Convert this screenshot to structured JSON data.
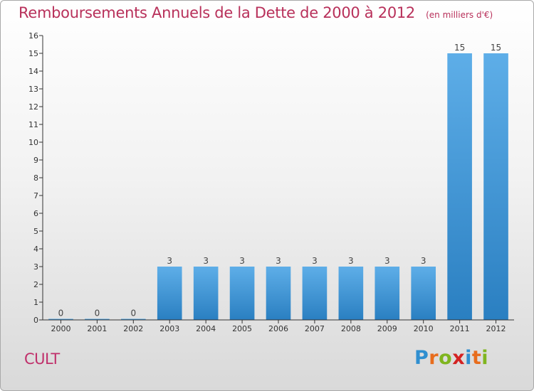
{
  "header": {
    "title": "Remboursements Annuels de la Dette de 2000 à 2012",
    "subtitle": "(en milliers d'€)"
  },
  "commune_name": "CULT",
  "brand": {
    "letters": [
      "P",
      "r",
      "o",
      "x",
      "i",
      "t",
      "i"
    ],
    "colors": [
      "#2f8fd0",
      "#e86d1d",
      "#7fb51f",
      "#d32222",
      "#2f8fd0",
      "#e86d1d",
      "#7fb51f"
    ]
  },
  "chart_data": {
    "type": "bar",
    "title": "Remboursements Annuels de la Dette de 2000 à 2012",
    "subtitle": "(en milliers d'€)",
    "categories": [
      "2000",
      "2001",
      "2002",
      "2003",
      "2004",
      "2005",
      "2006",
      "2007",
      "2008",
      "2009",
      "2010",
      "2011",
      "2012"
    ],
    "values": [
      0,
      0,
      0,
      3,
      3,
      3,
      3,
      3,
      3,
      3,
      3,
      15,
      15
    ],
    "data_labels": [
      "0",
      "0",
      "0",
      "3",
      "3",
      "3",
      "3",
      "3",
      "3",
      "3",
      "3",
      "15",
      "15"
    ],
    "yticks": [
      "0",
      "1",
      "2",
      "3",
      "4",
      "5",
      "6",
      "7",
      "8",
      "9",
      "10",
      "11",
      "12",
      "13",
      "14",
      "15",
      "16"
    ],
    "ylim": [
      0,
      16
    ],
    "xlabel": "",
    "ylabel": "",
    "grid": false,
    "bar_color": "#3d97dc"
  }
}
